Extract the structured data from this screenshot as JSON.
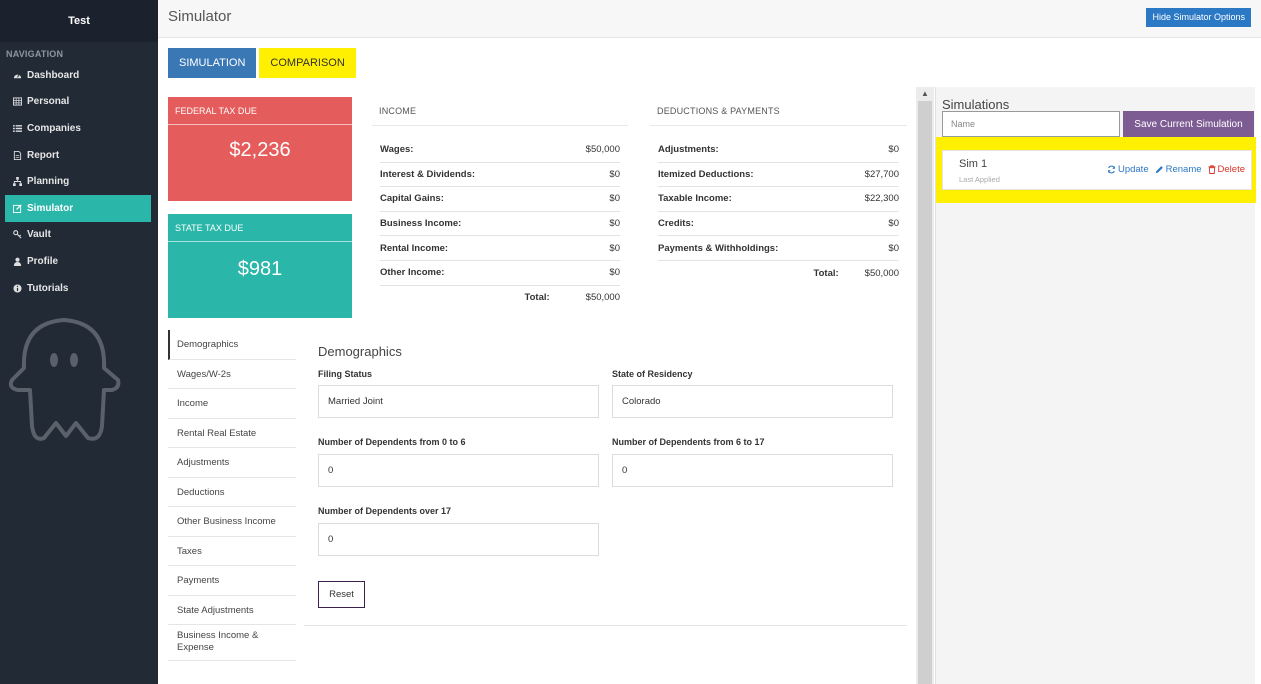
{
  "sidebar": {
    "brand": "Test",
    "nav_heading": "NAVIGATION",
    "items": [
      {
        "label": "Dashboard",
        "icon": "dashboard-icon"
      },
      {
        "label": "Personal",
        "icon": "table-icon"
      },
      {
        "label": "Companies",
        "icon": "list-icon"
      },
      {
        "label": "Report",
        "icon": "file-icon"
      },
      {
        "label": "Planning",
        "icon": "sitemap-icon"
      },
      {
        "label": "Simulator",
        "icon": "pencil-square-icon",
        "active": true
      },
      {
        "label": "Vault",
        "icon": "key-icon"
      },
      {
        "label": "Profile",
        "icon": "user-icon"
      },
      {
        "label": "Tutorials",
        "icon": "info-circle-icon"
      }
    ]
  },
  "header": {
    "title": "Simulator",
    "hide_button": "Hide Simulator Options"
  },
  "tabs": {
    "simulation": "SIMULATION",
    "comparison": "COMPARISON"
  },
  "tax_cards": {
    "federal": {
      "title": "FEDERAL TAX DUE",
      "value": "$2,236",
      "color": "#e55c5c"
    },
    "state": {
      "title": "STATE TAX DUE",
      "value": "$981",
      "color": "#2ab6a8"
    }
  },
  "income": {
    "title": "INCOME",
    "rows": [
      {
        "label": "Wages:",
        "value": "$50,000"
      },
      {
        "label": "Interest & Dividends:",
        "value": "$0"
      },
      {
        "label": "Capital Gains:",
        "value": "$0"
      },
      {
        "label": "Business Income:",
        "value": "$0"
      },
      {
        "label": "Rental Income:",
        "value": "$0"
      },
      {
        "label": "Other Income:",
        "value": "$0"
      }
    ],
    "total_label": "Total:",
    "total_value": "$50,000"
  },
  "deductions": {
    "title": "DEDUCTIONS & PAYMENTS",
    "rows": [
      {
        "label": "Adjustments:",
        "value": "$0"
      },
      {
        "label": "Itemized Deductions:",
        "value": "$27,700"
      },
      {
        "label": "Taxable Income:",
        "value": "$22,300"
      },
      {
        "label": "Credits:",
        "value": "$0"
      },
      {
        "label": "Payments & Withholdings:",
        "value": "$0"
      }
    ],
    "total_label": "Total:",
    "total_value": "$50,000"
  },
  "subnav": {
    "items": [
      "Demographics",
      "Wages/W-2s",
      "Income",
      "Rental Real Estate",
      "Adjustments",
      "Deductions",
      "Other Business Income",
      "Taxes",
      "Payments",
      "State Adjustments",
      "Business Income & Expense"
    ]
  },
  "form": {
    "title": "Demographics",
    "filing_status_label": "Filing Status",
    "filing_status_value": "Married Joint",
    "state_label": "State of Residency",
    "state_value": "Colorado",
    "dep_0_6_label": "Number of Dependents from 0 to 6",
    "dep_0_6_value": "0",
    "dep_6_17_label": "Number of Dependents from 6 to 17",
    "dep_6_17_value": "0",
    "dep_over_17_label": "Number of Dependents over 17",
    "dep_over_17_value": "0",
    "reset_label": "Reset"
  },
  "simulations": {
    "title": "Simulations",
    "name_placeholder": "Name",
    "save_button": "Save Current Simulation",
    "items": [
      {
        "name": "Sim 1",
        "status": "Last Applied",
        "update": "Update",
        "rename": "Rename",
        "delete": "Delete"
      }
    ]
  }
}
